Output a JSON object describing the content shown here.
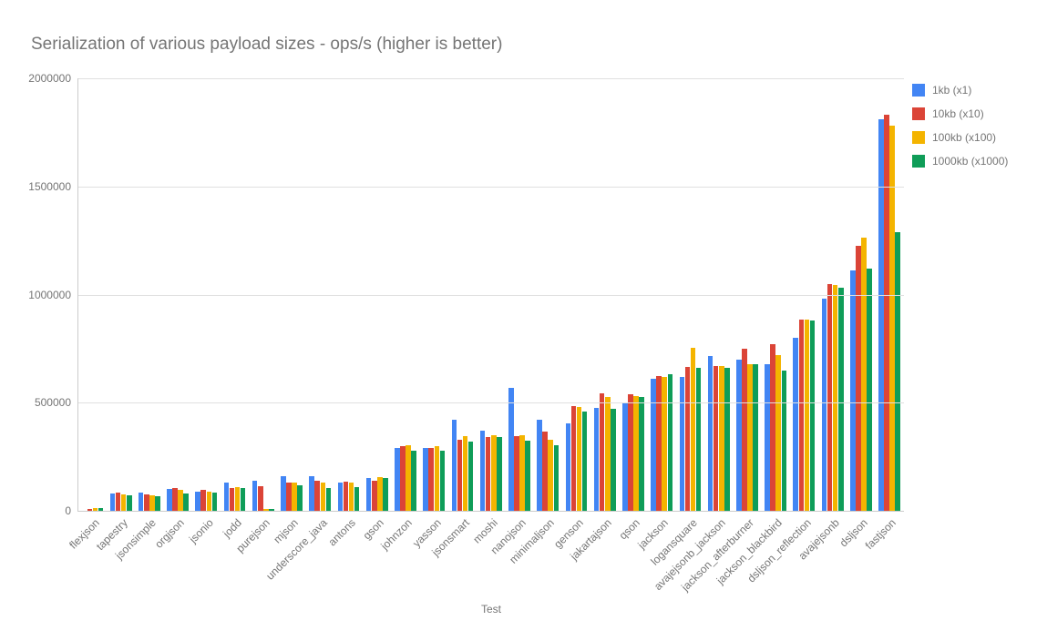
{
  "chart": {
    "type": "bar",
    "title": "Serialization of various payload sizes  - ops/s (higher is better)",
    "title_fontsize": 19,
    "title_color": "#757575",
    "x_axis_label": "Test",
    "ylim": [
      0,
      2000000
    ],
    "ytick_step": 500000,
    "yticks": [
      0,
      500000,
      1000000,
      1500000,
      2000000
    ],
    "background_color": "#ffffff",
    "grid_color": "#e0e0e0",
    "axis_color": "#cccccc",
    "label_fontsize": 12,
    "label_color": "#757575",
    "bar_group_gap_ratio": 0.22,
    "series": [
      {
        "name": "1kb (x1)",
        "color": "#4285f4"
      },
      {
        "name": "10kb (x10)",
        "color": "#db4437"
      },
      {
        "name": "100kb (x100)",
        "color": "#f4b400"
      },
      {
        "name": "1000kb (x1000)",
        "color": "#0f9d58"
      }
    ],
    "categories": [
      "flexjson",
      "tapestry",
      "jsonsimple",
      "orgjson",
      "jsonio",
      "jodd",
      "purejson",
      "mjson",
      "underscore_java",
      "antons",
      "gson",
      "johnzon",
      "yasson",
      "jsonsmart",
      "moshi",
      "nanojson",
      "minimaljson",
      "genson",
      "jakartajson",
      "qson",
      "jackson",
      "logansquare",
      "avajejsonb_jackson",
      "jackson_afterburner",
      "jackson_blackbird",
      "dsljson_reflection",
      "avajejsonb",
      "dsljson",
      "fastjson"
    ],
    "values": {
      "1kb (x1)": [
        0,
        80000,
        85000,
        100000,
        90000,
        130000,
        140000,
        160000,
        160000,
        130000,
        150000,
        290000,
        290000,
        420000,
        370000,
        570000,
        420000,
        405000,
        475000,
        500000,
        610000,
        620000,
        715000,
        700000,
        680000,
        800000,
        980000,
        1110000,
        1810000
      ],
      "10kb (x10)": [
        10000,
        85000,
        75000,
        105000,
        95000,
        105000,
        115000,
        130000,
        140000,
        135000,
        140000,
        300000,
        290000,
        330000,
        340000,
        345000,
        365000,
        485000,
        545000,
        540000,
        625000,
        665000,
        670000,
        750000,
        770000,
        885000,
        1050000,
        1225000,
        1830000
      ],
      "100kb (x100)": [
        12000,
        75000,
        70000,
        95000,
        90000,
        110000,
        10000,
        130000,
        130000,
        130000,
        155000,
        305000,
        300000,
        345000,
        350000,
        350000,
        330000,
        480000,
        525000,
        530000,
        620000,
        755000,
        670000,
        680000,
        720000,
        885000,
        1045000,
        1265000,
        1780000
      ],
      "1000kb (x1000)": [
        13000,
        70000,
        68000,
        80000,
        85000,
        105000,
        10000,
        120000,
        105000,
        110000,
        150000,
        280000,
        280000,
        320000,
        340000,
        325000,
        305000,
        460000,
        470000,
        525000,
        630000,
        660000,
        660000,
        680000,
        650000,
        880000,
        1030000,
        1120000,
        1290000
      ]
    }
  }
}
